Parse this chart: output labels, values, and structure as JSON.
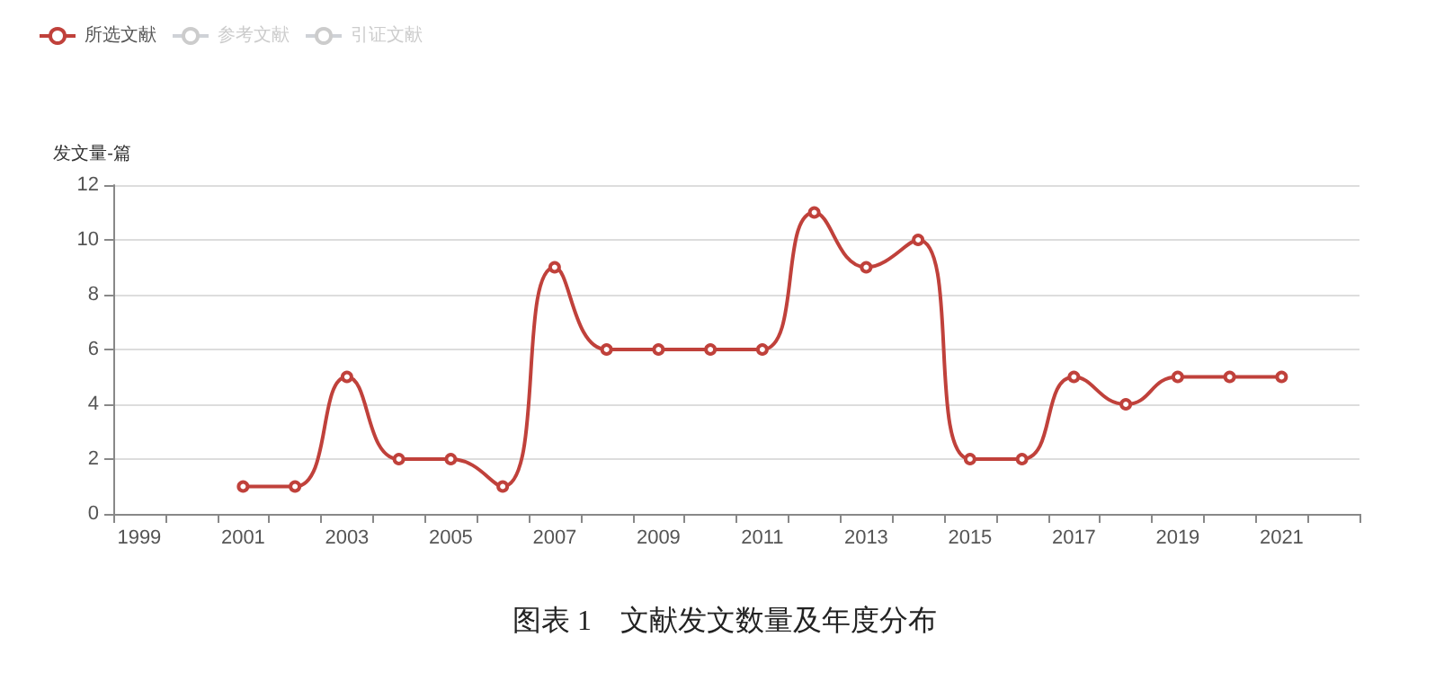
{
  "chart_data": {
    "type": "line",
    "ylabel": "发文量-篇",
    "categories": [
      "1999",
      null,
      "2001",
      null,
      "2003",
      null,
      "2005",
      null,
      "2007",
      null,
      "2009",
      null,
      "2011",
      null,
      "2013",
      null,
      "2015",
      null,
      "2017",
      null,
      "2019",
      null,
      "2021",
      null
    ],
    "series": [
      {
        "name": "所选文献",
        "color": "#c0413b",
        "values": [
          null,
          null,
          1,
          1,
          5,
          2,
          2,
          1,
          9,
          6,
          6,
          6,
          6,
          11,
          9,
          10,
          2,
          2,
          5,
          4,
          5,
          5,
          5,
          null
        ]
      },
      {
        "name": "参考文献",
        "color": "#cccccc",
        "values": [
          null,
          null,
          null,
          null,
          null,
          null,
          null,
          null,
          null,
          null,
          null,
          null,
          null,
          null,
          null,
          null,
          null,
          null,
          null,
          null,
          null,
          null,
          null,
          null
        ]
      },
      {
        "name": "引证文献",
        "color": "#cccccc",
        "values": [
          null,
          null,
          null,
          null,
          null,
          null,
          null,
          null,
          null,
          null,
          null,
          null,
          null,
          null,
          null,
          null,
          null,
          null,
          null,
          null,
          null,
          null,
          null,
          null
        ]
      }
    ],
    "ylim": [
      0,
      12
    ],
    "yticks": [
      0,
      2,
      4,
      6,
      8,
      10,
      12
    ],
    "grid": "y",
    "legend": "top left",
    "marker": "circle",
    "annotations": [
      "图表 1　文献发文数量及年度分布"
    ]
  }
}
